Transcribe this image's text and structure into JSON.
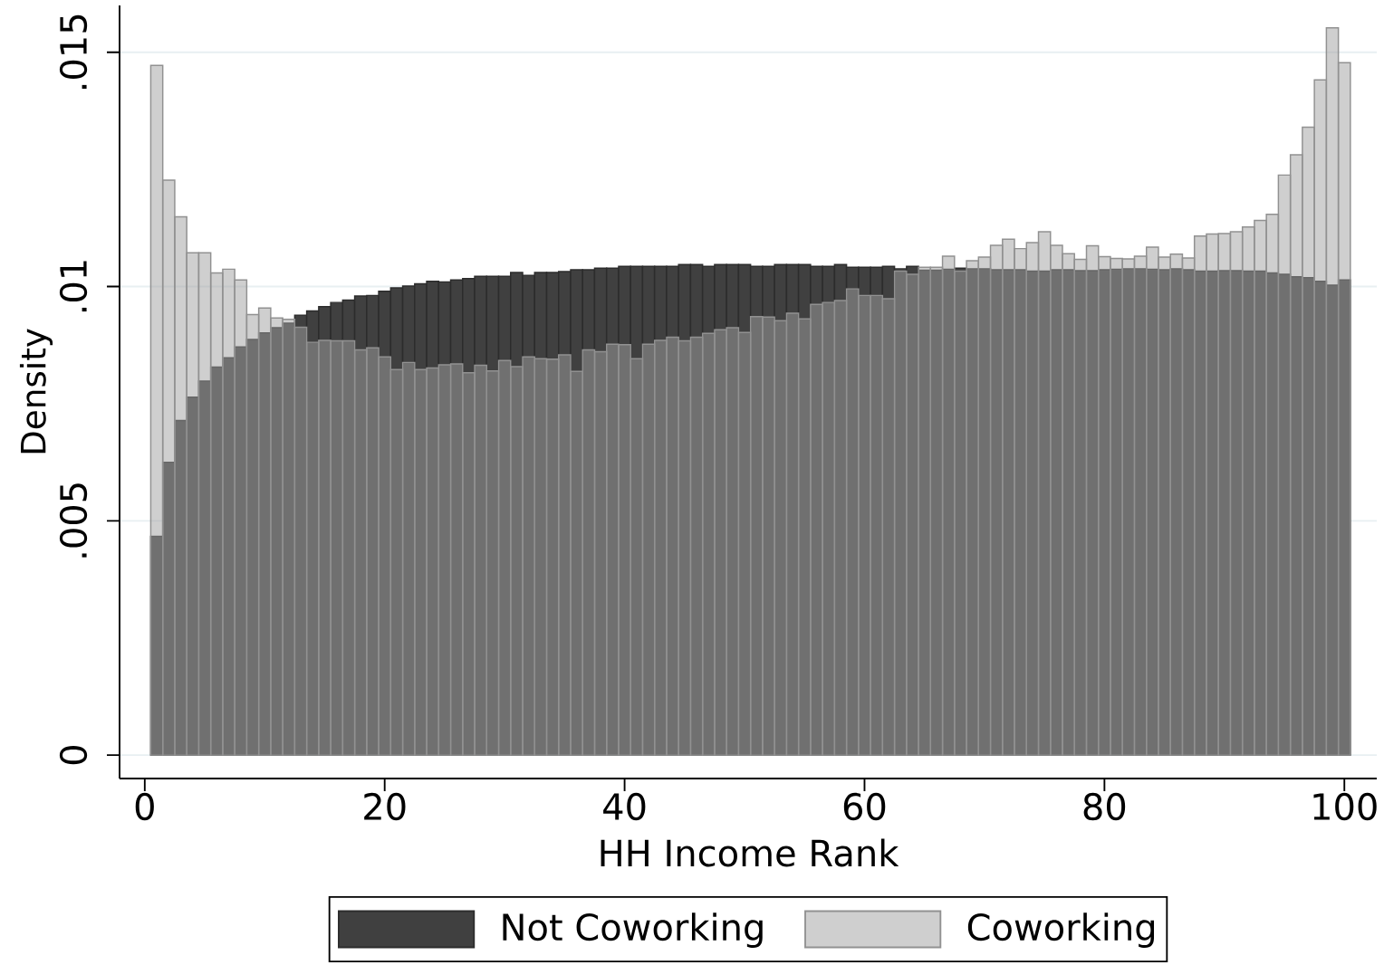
{
  "chart_data": {
    "type": "histogram",
    "xlabel": "HH Income Rank",
    "ylabel": "Density",
    "bins": [
      0.5,
      1.5,
      2.5,
      3.5,
      4.5,
      5.5,
      6.5,
      7.5,
      8.5,
      9.5,
      10.5,
      11.5,
      12.5,
      13.5,
      14.5,
      15.5,
      16.5,
      17.5,
      18.5,
      19.5,
      20.5,
      21.5,
      22.5,
      23.5,
      24.5,
      25.5,
      26.5,
      27.5,
      28.5,
      29.5,
      30.5,
      31.5,
      32.5,
      33.5,
      34.5,
      35.5,
      36.5,
      37.5,
      38.5,
      39.5,
      40.5,
      41.5,
      42.5,
      43.5,
      44.5,
      45.5,
      46.5,
      47.5,
      48.5,
      49.5,
      50.5,
      51.5,
      52.5,
      53.5,
      54.5,
      55.5,
      56.5,
      57.5,
      58.5,
      59.5,
      60.5,
      61.5,
      62.5,
      63.5,
      64.5,
      65.5,
      66.5,
      67.5,
      68.5,
      69.5,
      70.5,
      71.5,
      72.5,
      73.5,
      74.5,
      75.5,
      76.5,
      77.5,
      78.5,
      79.5,
      80.5,
      81.5,
      82.5,
      83.5,
      84.5,
      85.5,
      86.5,
      87.5,
      88.5,
      89.5,
      90.5,
      91.5,
      92.5,
      93.5,
      94.5,
      95.5,
      96.5,
      97.5,
      98.5,
      99.5,
      100.5
    ],
    "series": [
      {
        "name": "Not Coworking",
        "color": "#404040",
        "values": [
          0.00467,
          0.00625,
          0.00714,
          0.00764,
          0.00798,
          0.00828,
          0.00848,
          0.00871,
          0.00887,
          0.00901,
          0.00912,
          0.00922,
          0.00939,
          0.00948,
          0.00957,
          0.00966,
          0.00971,
          0.0098,
          0.00981,
          0.0099,
          0.00997,
          0.01001,
          0.01006,
          0.01011,
          0.0101,
          0.01014,
          0.01017,
          0.01022,
          0.01022,
          0.01022,
          0.0103,
          0.01024,
          0.0103,
          0.0103,
          0.01032,
          0.01036,
          0.01036,
          0.01039,
          0.01039,
          0.01043,
          0.01043,
          0.01043,
          0.01043,
          0.01043,
          0.01047,
          0.01047,
          0.01043,
          0.01047,
          0.01047,
          0.01047,
          0.01043,
          0.01043,
          0.01047,
          0.01047,
          0.01047,
          0.01043,
          0.01043,
          0.01047,
          0.01041,
          0.01041,
          0.01041,
          0.01043,
          0.01038,
          0.01043,
          0.01035,
          0.01035,
          0.01037,
          0.01039,
          0.01038,
          0.01038,
          0.01036,
          0.01036,
          0.01036,
          0.01033,
          0.01033,
          0.01036,
          0.01036,
          0.01034,
          0.01034,
          0.01036,
          0.01037,
          0.01038,
          0.01038,
          0.01037,
          0.01036,
          0.01038,
          0.01036,
          0.01033,
          0.01033,
          0.01034,
          0.01034,
          0.01033,
          0.01033,
          0.01029,
          0.01026,
          0.01021,
          0.01019,
          0.01011,
          0.01003,
          0.01014
        ]
      },
      {
        "name": "Coworking",
        "color": "#a0a0a0",
        "values": [
          0.01472,
          0.01227,
          0.01149,
          0.01072,
          0.01072,
          0.01029,
          0.01037,
          0.01014,
          0.0094,
          0.00954,
          0.00933,
          0.0093,
          0.00913,
          0.00881,
          0.00885,
          0.00884,
          0.00884,
          0.00865,
          0.00869,
          0.0085,
          0.00823,
          0.00838,
          0.00823,
          0.00826,
          0.00833,
          0.00835,
          0.00816,
          0.00832,
          0.0082,
          0.00842,
          0.00829,
          0.0085,
          0.00846,
          0.00845,
          0.00854,
          0.00819,
          0.00865,
          0.00861,
          0.00877,
          0.00876,
          0.00846,
          0.00877,
          0.00885,
          0.00892,
          0.00884,
          0.00892,
          0.009,
          0.00908,
          0.00912,
          0.00902,
          0.00936,
          0.00935,
          0.00927,
          0.00943,
          0.00931,
          0.00962,
          0.00966,
          0.0097,
          0.00995,
          0.00981,
          0.00981,
          0.00974,
          0.01033,
          0.01026,
          0.01041,
          0.01041,
          0.01065,
          0.01033,
          0.01055,
          0.01063,
          0.01088,
          0.01101,
          0.01081,
          0.01094,
          0.01117,
          0.01088,
          0.0107,
          0.01058,
          0.01087,
          0.01064,
          0.0106,
          0.01059,
          0.01065,
          0.01084,
          0.01063,
          0.01069,
          0.01061,
          0.01108,
          0.01112,
          0.01113,
          0.01117,
          0.01127,
          0.01141,
          0.01154,
          0.01238,
          0.01281,
          0.0134,
          0.01441,
          0.01552,
          0.01478
        ]
      }
    ],
    "xlim": [
      -2.1,
      102.7
    ],
    "ylim": [
      -0.0005,
      0.016
    ],
    "xticks": [
      0,
      20,
      40,
      60,
      80,
      100
    ],
    "yticks": [
      0,
      {
        "value": 0.005,
        "label": ".005"
      },
      {
        "value": 0.01,
        "label": ".01"
      },
      {
        "value": 0.015,
        "label": ".015"
      }
    ],
    "grid": "y",
    "legend": "bottom"
  }
}
